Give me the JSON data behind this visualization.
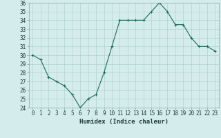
{
  "x": [
    0,
    1,
    2,
    3,
    4,
    5,
    6,
    7,
    8,
    9,
    10,
    11,
    12,
    13,
    14,
    15,
    16,
    17,
    18,
    19,
    20,
    21,
    22,
    23
  ],
  "y": [
    30,
    29.5,
    27.5,
    27,
    26.5,
    25.5,
    24,
    25,
    25.5,
    28,
    31,
    34,
    34,
    34,
    34,
    35,
    36,
    35,
    33.5,
    33.5,
    32,
    31,
    31,
    30.5
  ],
  "line_color": "#1a6b5a",
  "marker_color": "#1a6b5a",
  "bg_color": "#d4edec",
  "grid_color": "#aacccc",
  "xlabel": "Humidex (Indice chaleur)",
  "ylim": [
    24,
    36
  ],
  "yticks": [
    24,
    25,
    26,
    27,
    28,
    29,
    30,
    31,
    32,
    33,
    34,
    35,
    36
  ],
  "xticks": [
    0,
    1,
    2,
    3,
    4,
    5,
    6,
    7,
    8,
    9,
    10,
    11,
    12,
    13,
    14,
    15,
    16,
    17,
    18,
    19,
    20,
    21,
    22,
    23
  ],
  "xlim": [
    -0.5,
    23.5
  ],
  "label_fontsize": 6.5,
  "tick_fontsize": 5.5
}
